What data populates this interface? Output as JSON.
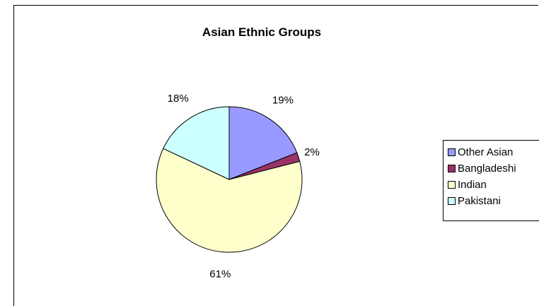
{
  "chart_data": {
    "type": "pie",
    "title": "Asian Ethnic Groups",
    "categories": [
      "Other Asian",
      "Bangladeshi",
      "Indian",
      "Pakistani"
    ],
    "values": [
      19,
      2,
      61,
      18
    ],
    "value_labels": [
      "19%",
      "2%",
      "61%",
      "18%"
    ],
    "colors": [
      "#9999ff",
      "#993366",
      "#ffffcc",
      "#ccffff"
    ],
    "legend": "right"
  }
}
